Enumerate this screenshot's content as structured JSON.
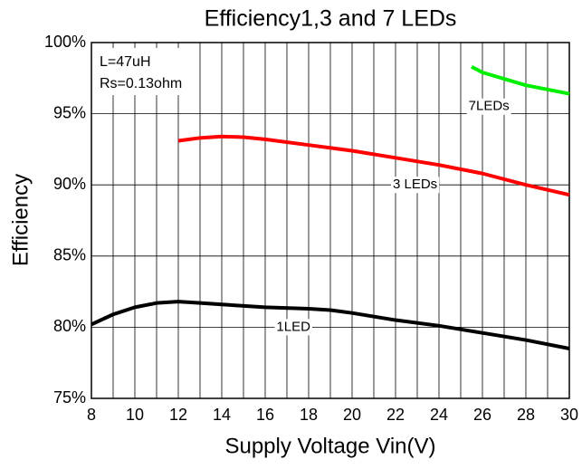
{
  "chart_data": {
    "type": "line",
    "title": "Efficiency1,3 and 7 LEDs",
    "xlabel": "Supply Voltage Vin(V)",
    "ylabel": "Efficiency",
    "annotations": [
      "L=47uH",
      "Rs=0.13ohm"
    ],
    "xlim": [
      8,
      30
    ],
    "xticks": [
      8,
      10,
      12,
      14,
      16,
      18,
      20,
      22,
      24,
      26,
      28,
      30
    ],
    "xminor": [
      9,
      11,
      13,
      15,
      17,
      19,
      21,
      23,
      25,
      27,
      29
    ],
    "ylim": [
      75,
      100
    ],
    "yticks": [
      {
        "value": 75,
        "label": "75%"
      },
      {
        "value": 80,
        "label": "80%"
      },
      {
        "value": 85,
        "label": "85%"
      },
      {
        "value": 90,
        "label": "90%"
      },
      {
        "value": 95,
        "label": "95%"
      },
      {
        "value": 100,
        "label": "100%"
      }
    ],
    "grid": true,
    "series": [
      {
        "name": "1LED",
        "color": "#000000",
        "x": [
          8,
          9,
          10,
          11,
          12,
          13,
          14,
          16,
          18,
          19,
          20,
          22,
          24,
          26,
          28,
          30
        ],
        "values": [
          80.2,
          80.9,
          81.4,
          81.7,
          81.8,
          81.7,
          81.6,
          81.4,
          81.3,
          81.2,
          81.0,
          80.5,
          80.1,
          79.6,
          79.1,
          78.5
        ]
      },
      {
        "name": "3 LEDs",
        "color": "#ff0000",
        "x": [
          12,
          13,
          14,
          15,
          16,
          18,
          20,
          22,
          24,
          26,
          28,
          30
        ],
        "values": [
          93.1,
          93.3,
          93.4,
          93.35,
          93.2,
          92.8,
          92.4,
          91.9,
          91.4,
          90.8,
          90.0,
          89.3
        ]
      },
      {
        "name": "7LEDs",
        "color": "#00ee00",
        "x": [
          25.5,
          26,
          28,
          30
        ],
        "values": [
          98.3,
          97.9,
          97.0,
          96.4
        ]
      }
    ]
  }
}
